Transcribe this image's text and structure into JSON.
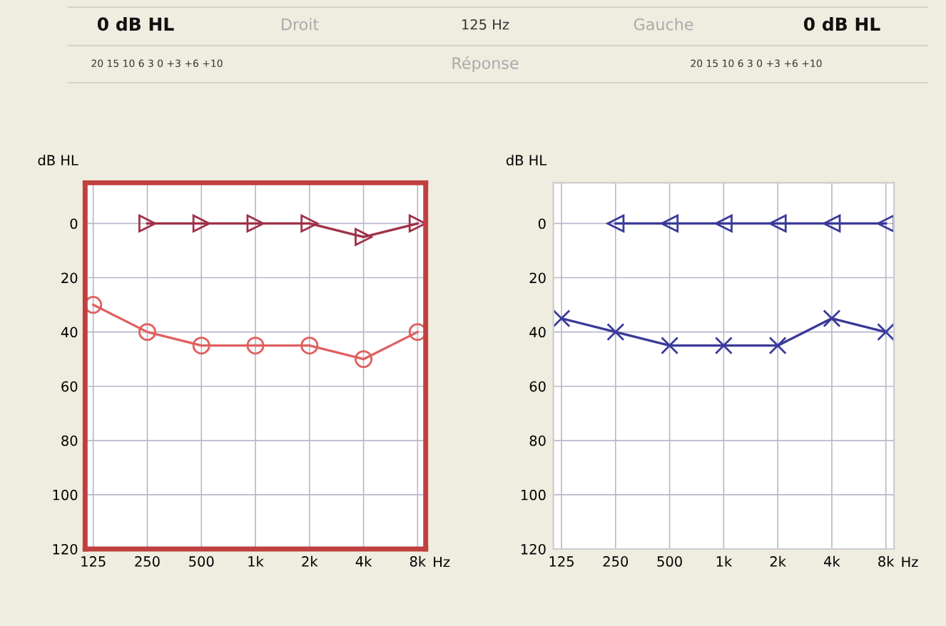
{
  "chart_data": [
    {
      "type": "other",
      "annotations": [
        "0 dB HL",
        "Droit",
        "125 Hz",
        "Gauche",
        "0 dB HL",
        "20 15 10 6 3 0 +3 +6 +10",
        "Réponse",
        "20 15 10 6 3 0 +3 +6 +10"
      ]
    },
    {
      "type": "line",
      "ylabel": "dB HL",
      "xlabel": "Hz",
      "categories": [
        "125",
        "250",
        "500",
        "1k",
        "2k",
        "4k",
        "8k"
      ],
      "ylim": [
        120,
        -15
      ],
      "yticks": [
        0,
        20,
        40,
        60,
        80,
        100,
        120
      ],
      "grid": true,
      "legend": false,
      "series": [
        {
          "color": "#a03048",
          "marker": "triangle",
          "values": [
            null,
            0,
            0,
            0,
            0,
            5,
            0
          ]
        },
        {
          "color": "#e06060",
          "marker": "circle",
          "values": [
            30,
            40,
            45,
            45,
            45,
            50,
            40
          ]
        }
      ]
    },
    {
      "type": "line",
      "ylabel": "dB HL",
      "xlabel": "Hz",
      "categories": [
        "125",
        "250",
        "500",
        "1k",
        "2k",
        "4k",
        "8k"
      ],
      "ylim": [
        120,
        -15
      ],
      "yticks": [
        0,
        20,
        40,
        60,
        80,
        100,
        120
      ],
      "grid": true,
      "legend": false,
      "series": [
        {
          "color": "#3a3a9a",
          "marker": "triangle",
          "values": [
            null,
            0,
            0,
            0,
            0,
            0,
            0
          ]
        },
        {
          "color": "#3a3a9a",
          "marker": "cross",
          "values": [
            35,
            40,
            45,
            45,
            45,
            35,
            40
          ]
        }
      ]
    }
  ]
}
